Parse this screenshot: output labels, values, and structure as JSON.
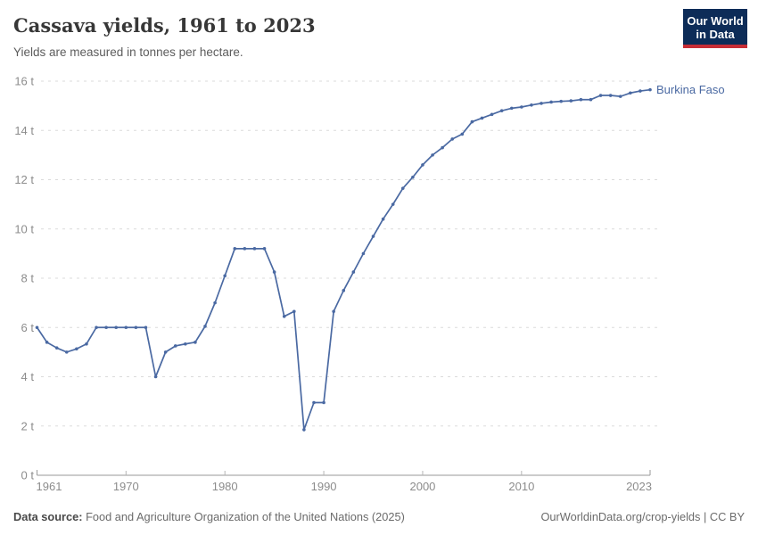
{
  "header": {
    "title": "Cassava yields, 1961 to 2023",
    "subtitle": "Yields are measured in tonnes per hectare.",
    "logo": {
      "line1": "Our World",
      "line2": "in Data"
    }
  },
  "chart_data": {
    "type": "line",
    "title": "Cassava yields, 1961 to 2023",
    "subtitle": "Yields are measured in tonnes per hectare.",
    "xlabel": "",
    "ylabel": "",
    "xlim": [
      1961,
      2023
    ],
    "ylim": [
      0,
      16
    ],
    "xticks": [
      1961,
      1970,
      1980,
      1990,
      2000,
      2010,
      2023
    ],
    "yticks": [
      0,
      2,
      4,
      6,
      8,
      10,
      12,
      14,
      16
    ],
    "ytick_suffix": " t",
    "grid": "dashed-horizontal",
    "legend": "end-of-line-label",
    "series": [
      {
        "name": "Burkina Faso",
        "color": "#4a69a2",
        "x": [
          1961,
          1962,
          1963,
          1964,
          1965,
          1966,
          1967,
          1968,
          1969,
          1970,
          1971,
          1972,
          1973,
          1974,
          1975,
          1976,
          1977,
          1978,
          1979,
          1980,
          1981,
          1982,
          1983,
          1984,
          1985,
          1986,
          1987,
          1988,
          1989,
          1990,
          1991,
          1992,
          1993,
          1994,
          1995,
          1996,
          1997,
          1998,
          1999,
          2000,
          2001,
          2002,
          2003,
          2004,
          2005,
          2006,
          2007,
          2008,
          2009,
          2010,
          2011,
          2012,
          2013,
          2014,
          2015,
          2016,
          2017,
          2018,
          2019,
          2020,
          2021,
          2022,
          2023
        ],
        "values": [
          6.0,
          5.4,
          5.17,
          5.0,
          5.13,
          5.33,
          6.0,
          6.0,
          6.0,
          6.0,
          6.0,
          6.0,
          4.0,
          5.0,
          5.25,
          5.33,
          5.4,
          6.05,
          7.0,
          8.1,
          9.2,
          9.2,
          9.2,
          9.2,
          8.25,
          6.45,
          6.65,
          1.85,
          2.95,
          2.95,
          6.65,
          7.5,
          8.25,
          9.0,
          9.7,
          10.4,
          11.0,
          11.65,
          12.1,
          12.6,
          13.0,
          13.3,
          13.65,
          13.85,
          14.35,
          14.5,
          14.65,
          14.8,
          14.9,
          14.95,
          15.03,
          15.1,
          15.15,
          15.18,
          15.2,
          15.25,
          15.25,
          15.42,
          15.42,
          15.38,
          15.52,
          15.6,
          15.65
        ]
      }
    ]
  },
  "footer": {
    "source_label": "Data source:",
    "source_text": " Food and Agriculture Organization of the United Nations (2025)",
    "right_text": "OurWorldinData.org/crop-yields | CC BY"
  },
  "colors": {
    "series": "#4a69a2",
    "logo_navy": "#0d2c58",
    "logo_red": "#c72d36",
    "grid": "#dbdbdb",
    "axis": "#9a9a9a",
    "tick_text": "#8c8c8c"
  }
}
